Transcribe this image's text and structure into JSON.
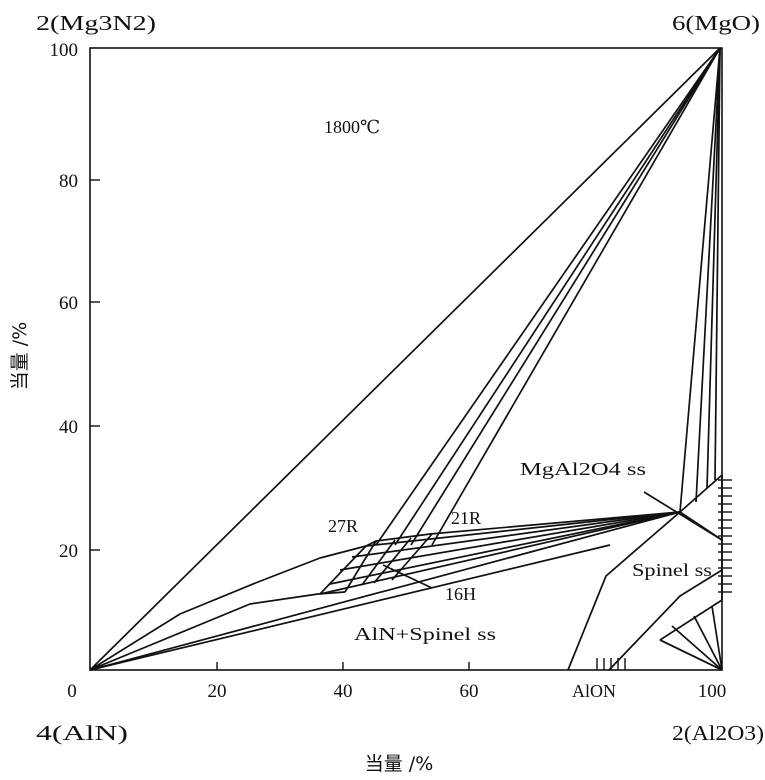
{
  "diagram": {
    "temperature": "1800℃",
    "corners": {
      "top_left": "2(Mg3N2)",
      "top_right": "6(MgO)",
      "bottom_left": "4(AlN)",
      "bottom_right": "2(Al2O3)"
    },
    "x_axis_title": "当量 /%",
    "y_axis_title": "当量 /%",
    "x_ticks": [
      "0",
      "20",
      "40",
      "60",
      "100"
    ],
    "y_ticks": [
      "100",
      "80",
      "60",
      "40",
      "20"
    ],
    "phase_labels": {
      "r27": "27R",
      "r21": "21R",
      "h16": "16H",
      "mgal2o4": "MgAl2O4 ss",
      "spinel": "Spinel ss",
      "aln_spinel": "AlN+Spinel ss",
      "alon": "AlON"
    }
  }
}
